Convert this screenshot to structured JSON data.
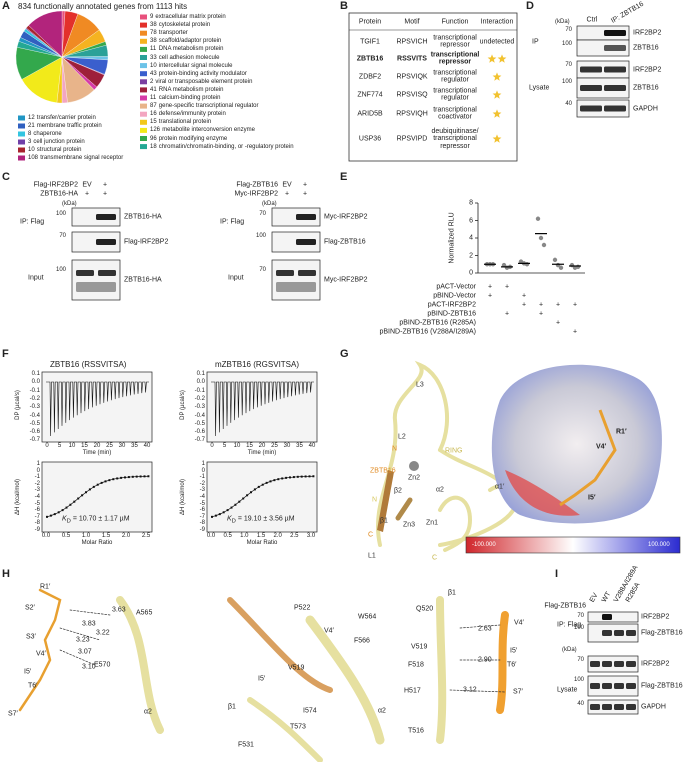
{
  "panel_labels": {
    "a": "A",
    "b": "B",
    "c": "C",
    "d": "D",
    "e": "E",
    "f": "F",
    "g": "G",
    "h": "H",
    "i": "I"
  },
  "panel_a": {
    "title": "834 functionally annotated genes from 1113 hits"
  },
  "chart_data": [
    {
      "type": "pie",
      "categories": [
        "extracellular matrix protein",
        "cytoskeletal protein",
        "transporter",
        "scaffold/adaptor protein",
        "DNA metabolism protein",
        "cell adhesion molecule",
        "intercellular signal molecule",
        "protein-binding activity modulator",
        "viral or transposable element protein",
        "RNA metabolism protein",
        "calcium-binding protein",
        "gene-specific transcriptional regulator",
        "defense/immunity protein",
        "translational protein",
        "metabolite interconversion enzyme",
        "protein modifying enzyme",
        "chromatin/chromatin-binding, or -regulatory protein",
        "transfer/carrier protein",
        "membrane traffic protein",
        "chaperone",
        "cell junction protein",
        "structural protein",
        "transmembrane signal receptor"
      ],
      "values": [
        9,
        38,
        78,
        38,
        11,
        33,
        10,
        43,
        2,
        41,
        11,
        87,
        16,
        15,
        126,
        96,
        18,
        12,
        21,
        8,
        3,
        10,
        108
      ],
      "colors": [
        "#e8507c",
        "#e3302b",
        "#f08a23",
        "#f5b320",
        "#36a84b",
        "#2aa198",
        "#6cc3e8",
        "#3a5fcd",
        "#7b3fa0",
        "#9e1f3a",
        "#d63ba8",
        "#e8b48a",
        "#f3a6c0",
        "#f2c81b",
        "#f2ea1a",
        "#33a84c",
        "#23a894",
        "#2196c4",
        "#3060c0",
        "#33c5e0",
        "#7040a8",
        "#a8242e",
        "#b2247c"
      ]
    },
    {
      "type": "dot",
      "ylabel": "Normalized RLU",
      "ylim": [
        0,
        8
      ],
      "yticks": [
        0,
        2,
        4,
        6,
        8
      ],
      "points": [
        [
          1,
          1,
          1
        ],
        [
          0.9,
          0.6,
          0.7
        ],
        [
          1.3,
          1.1,
          1.0
        ],
        [
          6.2,
          4.0,
          3.2
        ],
        [
          1.5,
          0.9,
          0.6
        ],
        [
          0.9,
          0.6,
          0.7
        ]
      ],
      "means": [
        1.0,
        0.7,
        1.1,
        4.5,
        1.0,
        0.8
      ],
      "color": "#888888",
      "conditions": [
        {
          "name": "pACT-Vector",
          "marks": [
            "+",
            "+",
            null,
            null,
            null,
            null
          ]
        },
        {
          "name": "pBIND-Vector",
          "marks": [
            "+",
            null,
            "+",
            null,
            null,
            null
          ]
        },
        {
          "name": "pACT-IRF2BP2",
          "marks": [
            null,
            null,
            "+",
            "+",
            "+",
            "+"
          ]
        },
        {
          "name": "pBIND-ZBTB16",
          "marks": [
            null,
            "+",
            null,
            "+",
            null,
            null
          ]
        },
        {
          "name": "pBIND-ZBTB16 (R285A)",
          "marks": [
            null,
            null,
            null,
            null,
            "+",
            null
          ]
        },
        {
          "name": "pBIND-ZBTB16 (V288A/I289A)",
          "marks": [
            null,
            null,
            null,
            null,
            null,
            "+"
          ]
        }
      ]
    }
  ],
  "panel_b": {
    "header": [
      "Protein",
      "Motif",
      "Function",
      "Interaction"
    ],
    "rows": [
      [
        "TGIF1",
        "RPSVICH",
        "transcriptional repressor",
        "undetected"
      ],
      [
        "ZBTB16",
        "RSSVITS",
        "transcriptional repressor",
        2
      ],
      [
        "ZDBF2",
        "RPSVIQK",
        "transcriptional regulator",
        1
      ],
      [
        "ZNF774",
        "RPSVISQ",
        "transcriptional regulator",
        1
      ],
      [
        "ARID5B",
        "RPSVIQH",
        "transcriptional coactivator",
        1
      ],
      [
        "USP36",
        "RPSVIPD",
        "deubiquitinase/ transcriptional repressor",
        1
      ]
    ]
  },
  "panel_c": {
    "left": {
      "rows": [
        "Flag-IRF2BP2",
        "ZBTB16-HA"
      ],
      "lane": "EV",
      "signs": [
        [
          "+"
        ],
        [
          "+",
          "+"
        ]
      ],
      "kda": "(kDa)",
      "ip": "IP: Flag",
      "input": "Input",
      "markers": [
        100,
        70,
        100
      ],
      "bands": [
        "ZBTB16-HA",
        "Flag-IRF2BP2",
        "ZBTB16-HA"
      ]
    },
    "right": {
      "rows": [
        "Flag-ZBTB16",
        "Myc-IRF2BP2"
      ],
      "lane": "EV",
      "signs": [
        [
          "+"
        ],
        [
          "+",
          "+"
        ]
      ],
      "kda": "(kDa)",
      "ip": "IP: Flag",
      "input": "Input",
      "markers": [
        70,
        100,
        70
      ],
      "bands": [
        "Myc-IRF2BP2",
        "Flag-ZBTB16",
        "Myc-IRF2BP2"
      ]
    }
  },
  "panel_d": {
    "kda": "(kDa)",
    "lanes": [
      "Ctrl",
      "IP: ZBTB16"
    ],
    "groups": [
      "IP",
      "Lysate"
    ],
    "markers": [
      70,
      100,
      70,
      100,
      40
    ],
    "bands": [
      "IRF2BP2",
      "ZBTB16",
      "IRF2BP2",
      "ZBTB16",
      "GAPDH"
    ]
  },
  "panel_f": [
    {
      "title": "ZBTB16 (RSSVITSA)",
      "dp_label": "DP (µcal/s)",
      "time_label": "Time (min)",
      "dh_label": "ΔH (kcal/mol)",
      "ratio_label": "Molar Ratio",
      "kd_symbol": "K",
      "kd_sub": "D",
      "kd_value": " = 10.70 ± 1.17 µM",
      "time_ticks": [
        "0",
        "5",
        "10",
        "15",
        "20",
        "25",
        "30",
        "35",
        "40"
      ],
      "ratio_ticks": [
        "0.0",
        "0.5",
        "1.0",
        "1.5",
        "2.0",
        "2.5"
      ],
      "dp_ticks": [
        "0.1",
        "0.0",
        "-0.1",
        "-0.2",
        "-0.3",
        "-0.4",
        "-0.5",
        "-0.6",
        "-0.7"
      ],
      "dh_ticks": [
        "1",
        "0",
        "-1",
        "-2",
        "-3",
        "-4",
        "-5",
        "-6",
        "-7",
        "-8",
        "-9"
      ]
    },
    {
      "title": "mZBTB16 (RGSVITSA)",
      "dp_label": "DP (µcal/s)",
      "time_label": "Time (min)",
      "dh_label": "ΔH (kcal/mol)",
      "ratio_label": "Molar Ratio",
      "kd_symbol": "K",
      "kd_sub": "D",
      "kd_value": " = 19.10 ± 3.56 µM",
      "time_ticks": [
        "0",
        "5",
        "10",
        "15",
        "20",
        "25",
        "30",
        "35",
        "40"
      ],
      "ratio_ticks": [
        "0.0",
        "0.5",
        "1.0",
        "1.5",
        "2.0",
        "2.5",
        "3.0"
      ],
      "dp_ticks": [
        "0.1",
        "0.0",
        "-0.1",
        "-0.2",
        "-0.3",
        "-0.4",
        "-0.5",
        "-0.6",
        "-0.7"
      ],
      "dh_ticks": [
        "1",
        "0",
        "-1",
        "-2",
        "-3",
        "-4",
        "-5",
        "-6",
        "-7",
        "-8",
        "-9"
      ]
    }
  ],
  "panel_g": {
    "ribbon": [
      "L3",
      "L2",
      "N",
      "RING",
      "ZBTB16",
      "Zn2",
      "β2",
      "α2",
      "α1′",
      "N",
      "C",
      "β1",
      "Zn3",
      "Zn1",
      "L1",
      "C"
    ],
    "surface": [
      "R1′",
      "V4′",
      "I5′"
    ],
    "scale": [
      "-100.000",
      "100.000"
    ]
  },
  "panel_h": {
    "left": [
      "R1′",
      "A565",
      "S2′",
      "3.63",
      "3.83",
      "3.22",
      "S3′",
      "3.23",
      "V4′",
      "3.07",
      "I5′",
      "3.10",
      "E570",
      "T6′",
      "S7′",
      "α2"
    ],
    "middle": [
      "P522",
      "W564",
      "V4′",
      "F566",
      "V519",
      "I5′",
      "β1",
      "I574",
      "α2",
      "T573",
      "F531"
    ],
    "right": [
      "β1",
      "Q520",
      "V4′",
      "2.63",
      "V519",
      "I5′",
      "F518",
      "2.90",
      "T6′",
      "H517",
      "3.12",
      "S7′",
      "T516"
    ]
  },
  "panel_i": {
    "row": "Flag-ZBTB16",
    "lanes": [
      "EV",
      "WT",
      "V288A/I289A",
      "R285A"
    ],
    "kda": "(kDa)",
    "ip": "IP: Flag",
    "lysate": "Lysate",
    "markers": [
      70,
      100,
      70,
      100,
      40
    ],
    "bands": [
      "IRF2BP2",
      "Flag-ZBTB16",
      "IRF2BP2",
      "Flag-ZBTB16",
      "GAPDH"
    ]
  }
}
